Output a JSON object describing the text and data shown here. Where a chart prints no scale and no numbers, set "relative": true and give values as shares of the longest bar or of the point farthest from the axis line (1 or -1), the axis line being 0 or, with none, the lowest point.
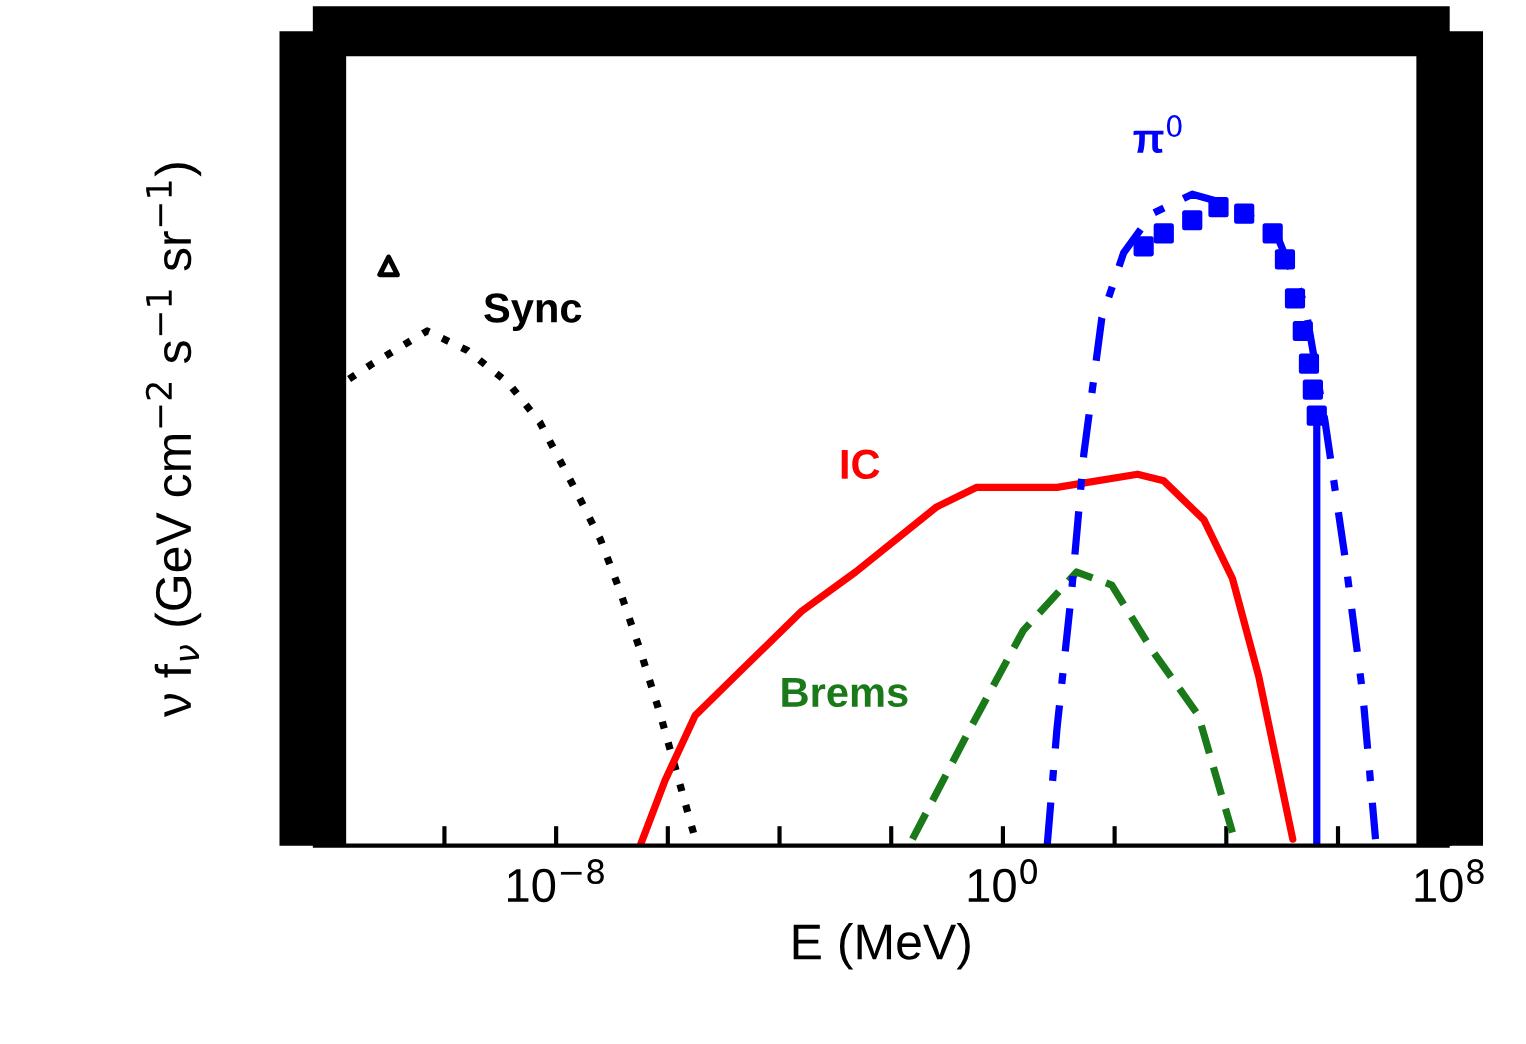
{
  "chart_data": {
    "type": "line",
    "relative": true,
    "xlabel": "E (MeV)",
    "ylabel": "ν f$_{ν}$ (GeV cm$^{−2}$ s$^{−1}$ sr$^{−1}$)",
    "log": "x",
    "xlim": [
      4.4e-13,
      100000000.0
    ],
    "xticks": [
      {
        "value": 1e-12,
        "label": null
      },
      {
        "value": 1e-10,
        "label": null
      },
      {
        "value": 1e-08,
        "label": "10$^{−8}$"
      },
      {
        "value": 1e-06,
        "label": null
      },
      {
        "value": 0.0001,
        "label": null
      },
      {
        "value": 0.01,
        "label": null
      },
      {
        "value": 1,
        "label": "10$^{0}$"
      },
      {
        "value": 100.0,
        "label": null
      },
      {
        "value": 10000.0,
        "label": null
      },
      {
        "value": 1000000.0,
        "label": null
      },
      {
        "value": 100000000.0,
        "label": "10$^{8}$"
      }
    ],
    "grid": false,
    "legend": false,
    "series": [
      {
        "name": "Sync",
        "color": "#000000",
        "line_style": "dotted",
        "x": [
          4.4e-13,
          5.2e-12,
          4.9e-11,
          2.6e-10,
          1.4e-09,
          5.1e-09,
          2.1e-08,
          6.2e-08,
          1.4e-07,
          3.2e-07,
          7.4e-07,
          1.7e-06,
          3.1e-06
        ],
        "values": [
          0.68,
          0.74,
          0.79,
          0.76,
          0.71,
          0.65,
          0.55,
          0.47,
          0.39,
          0.3,
          0.2,
          0.09,
          0.01
        ]
      },
      {
        "name": "IC",
        "color": "#ff0000",
        "line_style": "solid",
        "x": [
          3.2e-07,
          8.9e-07,
          3.1e-06,
          1.6e-05,
          0.00025,
          0.0023,
          0.065,
          0.34,
          2.3,
          9.3,
          257,
          759,
          3981,
          12882,
          38019,
          154882
        ],
        "values": [
          0,
          0.1,
          0.2,
          0.26,
          0.36,
          0.42,
          0.52,
          0.55,
          0.55,
          0.55,
          0.57,
          0.56,
          0.5,
          0.41,
          0.26,
          0.01
        ]
      },
      {
        "name": "Brems",
        "color": "#1a7a1a",
        "line_style": "dashed",
        "x": [
          0.024,
          0.26,
          2.3,
          21,
          89,
          468,
          3162,
          12882
        ],
        "values": [
          0.01,
          0.18,
          0.33,
          0.42,
          0.4,
          0.3,
          0.2,
          0.02
        ]
      },
      {
        "name": "π$^{0}$",
        "color": "#0000ff",
        "line_style": "dashdot",
        "x": [
          6.2,
          9.3,
          17,
          28,
          59,
          145,
          468,
          2455,
          16596,
          87096,
          257040,
          588844,
          1350000.0,
          2800000.0,
          4700000.0
        ],
        "values": [
          0,
          0.18,
          0.39,
          0.6,
          0.81,
          0.91,
          0.97,
          1.0,
          0.98,
          0.93,
          0.83,
          0.65,
          0.44,
          0.23,
          0.01
        ]
      },
      {
        "type": "scatter",
        "color": "#000000",
        "marker": "triangle",
        "x": [
          1e-11
        ],
        "values": [
          0.89
        ]
      },
      {
        "type": "scatter",
        "color": "#0000ff",
        "marker": "square",
        "x": [
          331,
          759,
          2455,
          7244,
          20893,
          67608,
          112202,
          169824,
          234423,
          301995,
          354813,
          416869
        ],
        "values": [
          0.92,
          0.94,
          0.96,
          0.98,
          0.97,
          0.94,
          0.9,
          0.84,
          0.79,
          0.74,
          0.7,
          0.66
        ]
      },
      {
        "type": "line",
        "color": "#0000ff",
        "line_style": "solid",
        "x": [
          416869,
          416869
        ],
        "values": [
          0.66,
          0
        ]
      }
    ]
  }
}
